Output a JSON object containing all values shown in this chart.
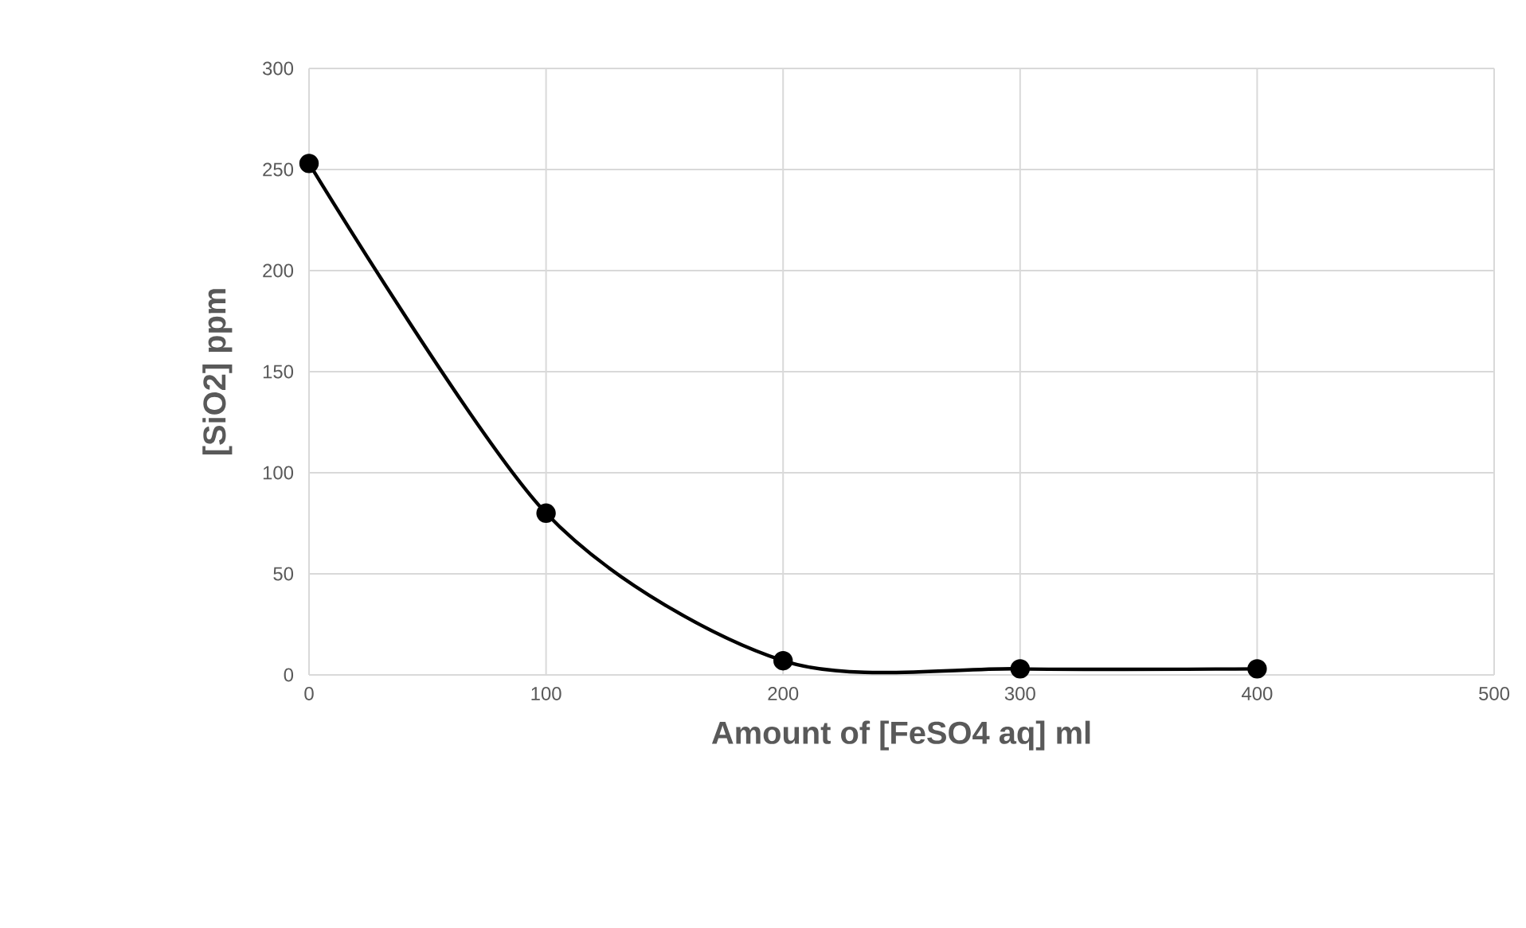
{
  "chart_data": {
    "type": "line",
    "xlabel": "Amount of  [FeSO4 aq] ml",
    "ylabel": "[SiO2]  ppm",
    "x": [
      0,
      100,
      200,
      300,
      400
    ],
    "series": [
      {
        "color": "#000000",
        "values": [
          253,
          80,
          7,
          3,
          3
        ]
      }
    ],
    "xlim": [
      0,
      500
    ],
    "xticks": [
      0,
      100,
      200,
      300,
      400,
      500
    ],
    "ylim": [
      0,
      300
    ],
    "yticks": [
      0,
      50,
      100,
      150,
      200,
      250,
      300
    ],
    "grid": true,
    "marker": "circle",
    "line_style": "solid"
  }
}
